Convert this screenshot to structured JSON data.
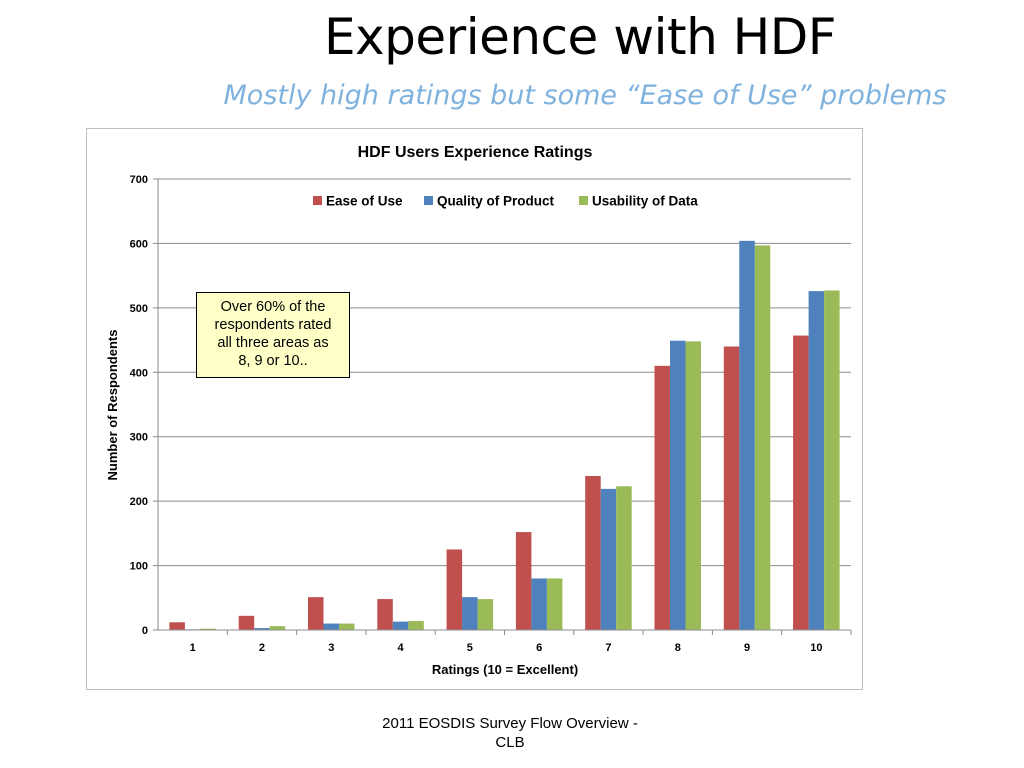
{
  "slide": {
    "title": "Experience with HDF",
    "subtitle": "Mostly high ratings but some “Ease of Use” problems",
    "footer_line1": "2011 EOSDIS Survey Flow Overview -",
    "footer_line2": "CLB"
  },
  "callout": {
    "line1": "Over 60% of the",
    "line2": "respondents rated",
    "line3": "all three areas as",
    "line4": "8, 9 or 10.."
  },
  "chart_data": {
    "type": "bar",
    "title": "HDF Users Experience Ratings",
    "xlabel": "Ratings (10 = Excellent)",
    "ylabel": "Number of Respondents",
    "ylim": [
      0,
      700
    ],
    "yticks": [
      0,
      100,
      200,
      300,
      400,
      500,
      600,
      700
    ],
    "grid": true,
    "legend_position": "top",
    "categories": [
      "1",
      "2",
      "3",
      "4",
      "5",
      "6",
      "7",
      "8",
      "9",
      "10"
    ],
    "series": [
      {
        "name": "Ease of Use",
        "color": "#c0504d",
        "values": [
          12,
          22,
          51,
          48,
          125,
          152,
          239,
          410,
          440,
          457
        ]
      },
      {
        "name": "Quality of Product",
        "color": "#4f81bd",
        "values": [
          1,
          3,
          10,
          13,
          51,
          80,
          219,
          449,
          604,
          526
        ]
      },
      {
        "name": "Usability of Data",
        "color": "#9bbb59",
        "values": [
          2,
          6,
          10,
          14,
          48,
          80,
          223,
          448,
          597,
          527
        ]
      }
    ]
  }
}
